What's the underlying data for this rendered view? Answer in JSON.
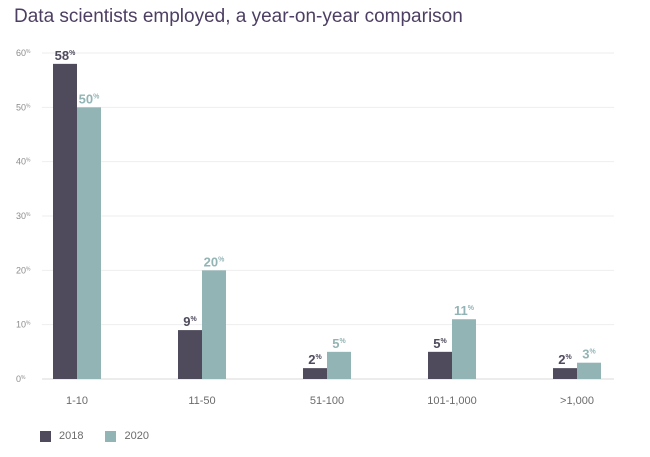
{
  "chart_data": {
    "type": "bar",
    "title": "Data scientists employed, a year-on-year comparison",
    "categories": [
      "1-10",
      "11-50",
      "51-100",
      "101-1,000",
      ">1,000"
    ],
    "series": [
      {
        "name": "2018",
        "values": [
          58,
          9,
          2,
          5,
          2
        ],
        "labels": [
          "58",
          "9",
          "2",
          "5",
          "2"
        ],
        "color": "#4f4a5c"
      },
      {
        "name": "2020",
        "values": [
          50,
          20,
          5,
          11,
          3
        ],
        "labels": [
          "50",
          "20",
          "5",
          "11",
          "3"
        ],
        "color": "#93b4b5"
      }
    ],
    "value_suffix": "%",
    "yticks": [
      0,
      10,
      20,
      30,
      40,
      50,
      60
    ],
    "ylim": [
      0,
      60
    ],
    "grid": true,
    "legend_position": "bottom-left"
  }
}
